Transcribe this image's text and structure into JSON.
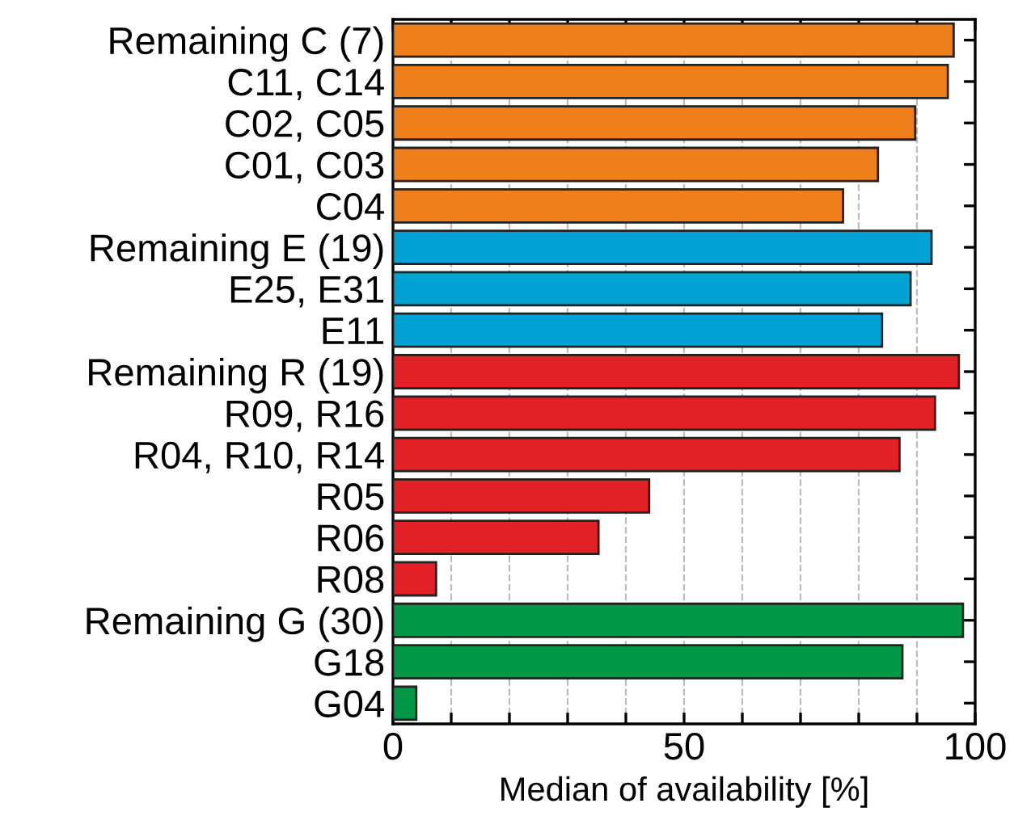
{
  "chart_data": {
    "type": "bar",
    "orientation": "horizontal",
    "xlabel": "Median of availability [%]",
    "categories": [
      "Remaining C (7)",
      "C11, C14",
      "C02, C05",
      "C01, C03",
      "C04",
      "Remaining E (19)",
      "E25, E31",
      "E11",
      "Remaining R (19)",
      "R09, R16",
      "R04, R10, R14",
      "R05",
      "R06",
      "R08",
      "Remaining G (30)",
      "G18",
      "G04"
    ],
    "values": [
      96.3,
      95.3,
      89.7,
      83.3,
      77.3,
      92.5,
      88.9,
      84.0,
      97.2,
      93.1,
      87.0,
      44.0,
      35.3,
      7.4,
      97.9,
      87.5,
      4.0
    ],
    "colors": [
      "#ef7f1a",
      "#ef7f1a",
      "#ef7f1a",
      "#ef7f1a",
      "#ef7f1a",
      "#00a3d4",
      "#00a3d4",
      "#00a3d4",
      "#e32227",
      "#e32227",
      "#e32227",
      "#e32227",
      "#e32227",
      "#e32227",
      "#009846",
      "#009846",
      "#009846"
    ],
    "xlim": [
      0,
      100
    ],
    "xticks": [
      0,
      {
        "value": 10,
        "label": null
      },
      {
        "value": 20,
        "label": null
      },
      {
        "value": 30,
        "label": null
      },
      {
        "value": 40,
        "label": null
      },
      50,
      {
        "value": 60,
        "label": null
      },
      {
        "value": 70,
        "label": null
      },
      {
        "value": 80,
        "label": null
      },
      {
        "value": 90,
        "label": null
      },
      100
    ],
    "grid": "x"
  }
}
